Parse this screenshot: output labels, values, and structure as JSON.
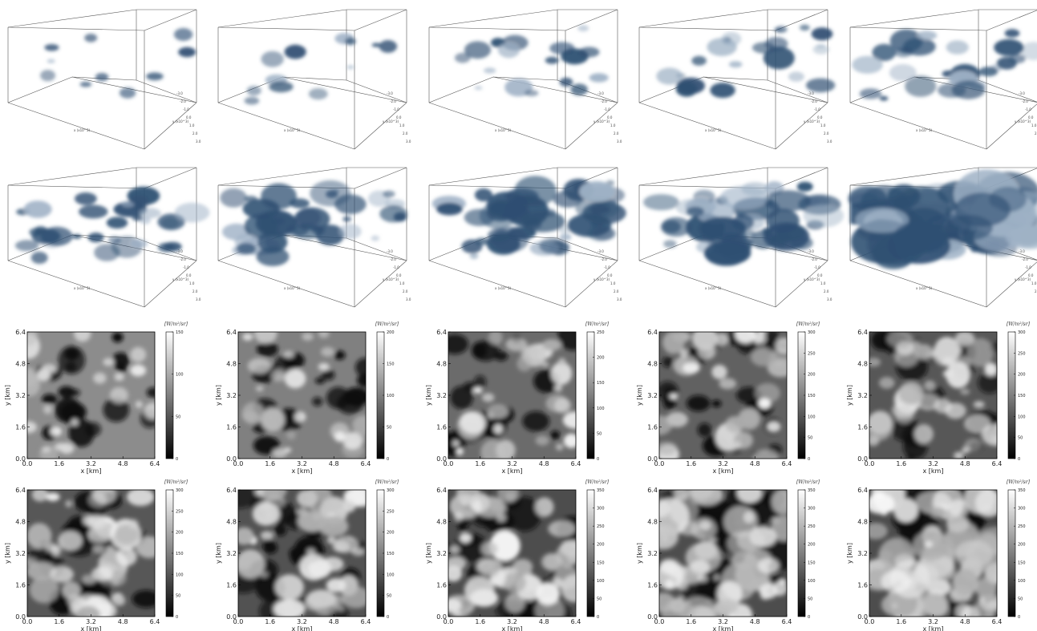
{
  "figure": {
    "panel_count_3d": 10,
    "panel_count_2d": 10
  },
  "chart_data": [
    {
      "type": "volume-3d",
      "description_row": 1,
      "panels": [
        {
          "cloud_fraction": 0.06
        },
        {
          "cloud_fraction": 0.08
        },
        {
          "cloud_fraction": 0.16
        },
        {
          "cloud_fraction": 0.22
        },
        {
          "cloud_fraction": 0.3
        }
      ],
      "xlabel": "x (x10^3)",
      "ylabel": "y (x10^3)",
      "y_ticks": [
        "-3.0",
        "-2.0",
        "-1.0",
        "0.0",
        "1.0",
        "2.0",
        "3.0"
      ],
      "cloud_color": "#2e4f72"
    },
    {
      "type": "volume-3d",
      "description_row": 2,
      "panels": [
        {
          "cloud_fraction": 0.34
        },
        {
          "cloud_fraction": 0.42
        },
        {
          "cloud_fraction": 0.5
        },
        {
          "cloud_fraction": 0.58
        },
        {
          "cloud_fraction": 0.95
        }
      ],
      "xlabel": "x (x10^3)",
      "ylabel": "y (x10^3)",
      "y_ticks": [
        "-3.0",
        "-2.0",
        "-1.0",
        "0.0",
        "1.0",
        "2.0",
        "3.0"
      ],
      "cloud_color": "#2e4f72"
    },
    {
      "type": "heatmap",
      "row": 3,
      "xlabel": "x [km]",
      "ylabel": "y [km]",
      "x_ticks": [
        "0.0",
        "1.6",
        "3.2",
        "4.8",
        "6.4"
      ],
      "y_ticks": [
        "0.0",
        "1.6",
        "3.2",
        "4.8",
        "6.4"
      ],
      "xlim": [
        0,
        6.4
      ],
      "ylim": [
        0,
        6.4
      ],
      "colorbar_unit": "[W/m²/sr]",
      "colormap": "gray",
      "panels": [
        {
          "vmax": 150,
          "cb_ticks": [
            "0",
            "50",
            "100",
            "150"
          ],
          "cloud_fraction": 0.22,
          "bg_level": 0.55
        },
        {
          "vmax": 200,
          "cb_ticks": [
            "0",
            "50",
            "100",
            "150",
            "200"
          ],
          "cloud_fraction": 0.26,
          "bg_level": 0.5
        },
        {
          "vmax": 250,
          "cb_ticks": [
            "0",
            "50",
            "100",
            "150",
            "200",
            "250"
          ],
          "cloud_fraction": 0.34,
          "bg_level": 0.42
        },
        {
          "vmax": 300,
          "cb_ticks": [
            "0",
            "50",
            "100",
            "150",
            "200",
            "250",
            "300"
          ],
          "cloud_fraction": 0.38,
          "bg_level": 0.38
        },
        {
          "vmax": 300,
          "cb_ticks": [
            "0",
            "50",
            "100",
            "150",
            "200",
            "250",
            "300"
          ],
          "cloud_fraction": 0.46,
          "bg_level": 0.34
        }
      ]
    },
    {
      "type": "heatmap",
      "row": 4,
      "xlabel": "x [km]",
      "ylabel": "y [km]",
      "x_ticks": [
        "0.0",
        "1.6",
        "3.2",
        "4.8",
        "6.4"
      ],
      "y_ticks": [
        "0.0",
        "1.6",
        "3.2",
        "4.8",
        "6.4"
      ],
      "xlim": [
        0,
        6.4
      ],
      "ylim": [
        0,
        6.4
      ],
      "colorbar_unit": "[W/m²/sr]",
      "colormap": "gray",
      "panels": [
        {
          "vmax": 300,
          "cb_ticks": [
            "0",
            "50",
            "100",
            "150",
            "200",
            "250",
            "300"
          ],
          "cloud_fraction": 0.52,
          "bg_level": 0.34
        },
        {
          "vmax": 300,
          "cb_ticks": [
            "0",
            "50",
            "100",
            "150",
            "200",
            "250",
            "300"
          ],
          "cloud_fraction": 0.56,
          "bg_level": 0.32
        },
        {
          "vmax": 350,
          "cb_ticks": [
            "0",
            "50",
            "100",
            "150",
            "200",
            "250",
            "300",
            "350"
          ],
          "cloud_fraction": 0.64,
          "bg_level": 0.3
        },
        {
          "vmax": 350,
          "cb_ticks": [
            "0",
            "50",
            "100",
            "150",
            "200",
            "250",
            "300",
            "350"
          ],
          "cloud_fraction": 0.78,
          "bg_level": 0.3
        },
        {
          "vmax": 350,
          "cb_ticks": [
            "0",
            "50",
            "100",
            "150",
            "200",
            "250",
            "300",
            "350"
          ],
          "cloud_fraction": 0.92,
          "bg_level": 0.3
        }
      ]
    }
  ]
}
